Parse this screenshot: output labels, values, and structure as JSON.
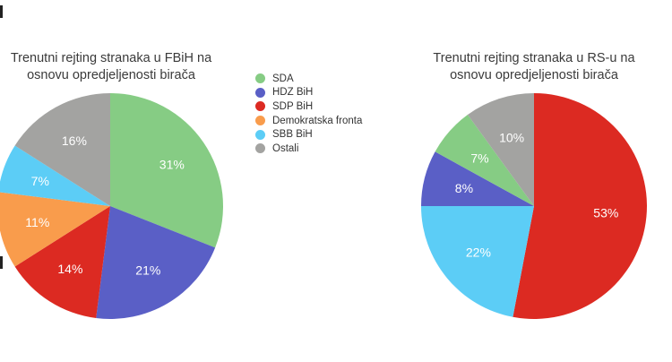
{
  "chart_data": [
    {
      "type": "pie",
      "title_lines": [
        "Trenutni rejting stranaka u FBiH na",
        "osnovu opredjeljenosti birača"
      ],
      "slices": [
        {
          "label": "SDA",
          "value": 31,
          "text": "31%",
          "color": "#86cc84"
        },
        {
          "label": "HDZ BiH",
          "value": 21,
          "text": "21%",
          "color": "#5a5fc6"
        },
        {
          "label": "SDP BiH",
          "value": 14,
          "text": "14%",
          "color": "#dc2a22"
        },
        {
          "label": "Demokratska fronta",
          "value": 11,
          "text": "11%",
          "color": "#f99c4c"
        },
        {
          "label": "SBB BiH",
          "value": 7,
          "text": "7%",
          "color": "#5ccdf6"
        },
        {
          "label": "Ostali",
          "value": 16,
          "text": "16%",
          "color": "#a3a3a1"
        }
      ]
    },
    {
      "type": "pie",
      "title_lines": [
        "Trenutni rejting stranaka u RS-u na",
        "osnovu opredjeljenosti birača"
      ],
      "slices": [
        {
          "label": "SDP BiH",
          "value": 53,
          "text": "53%",
          "color": "#dc2a22"
        },
        {
          "label": "SBB BiH",
          "value": 22,
          "text": "22%",
          "color": "#5ccdf6"
        },
        {
          "label": "HDZ BiH",
          "value": 8,
          "text": "8%",
          "color": "#5a5fc6"
        },
        {
          "label": "SDA",
          "value": 7,
          "text": "7%",
          "color": "#86cc84"
        },
        {
          "label": "Ostali",
          "value": 10,
          "text": "10%",
          "color": "#a3a3a1"
        }
      ]
    }
  ],
  "legend": [
    {
      "label": "SDA",
      "color": "#86cc84"
    },
    {
      "label": "HDZ BiH",
      "color": "#5a5fc6"
    },
    {
      "label": "SDP BiH",
      "color": "#dc2a22"
    },
    {
      "label": "Demokratska fronta",
      "color": "#f99c4c"
    },
    {
      "label": "SBB BiH",
      "color": "#5ccdf6"
    },
    {
      "label": "Ostali",
      "color": "#a3a3a1"
    }
  ]
}
